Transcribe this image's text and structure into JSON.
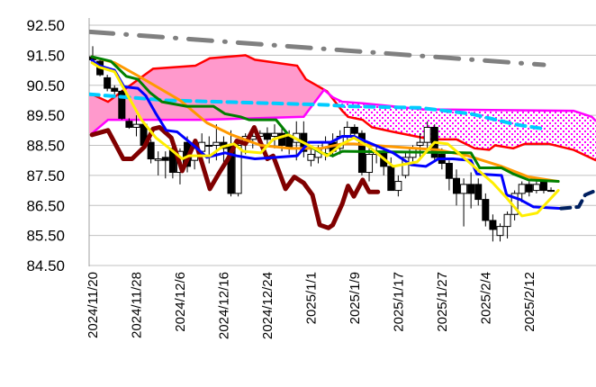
{
  "chart_data": {
    "type": "candlestick-ichimoku",
    "title": "",
    "xlabel": "",
    "ylabel": "",
    "ylim": [
      84.5,
      92.5
    ],
    "xlim": [
      -0.5,
      69.2
    ],
    "grid": true,
    "y_ticks": [
      "84.50",
      "85.50",
      "86.50",
      "87.50",
      "88.50",
      "89.50",
      "90.50",
      "91.50",
      "92.50"
    ],
    "x_tick_labels": [
      {
        "index": 0,
        "label": "2024/11/20"
      },
      {
        "index": 6,
        "label": "2024/11/28"
      },
      {
        "index": 12,
        "label": "2024/12/6"
      },
      {
        "index": 18,
        "label": "2024/12/16"
      },
      {
        "index": 24,
        "label": "2024/12/24"
      },
      {
        "index": 30,
        "label": "2025/1/1"
      },
      {
        "index": 36,
        "label": "2025/1/9"
      },
      {
        "index": 42,
        "label": "2025/1/17"
      },
      {
        "index": 48,
        "label": "2025/1/27"
      },
      {
        "index": 54,
        "label": "2025/2/4"
      },
      {
        "index": 60,
        "label": "2025/2/12"
      }
    ],
    "colors": {
      "kumo_bull": "#ff99cc",
      "kumo_bear_dots": "#ff00ff",
      "span_a": "#ff0000",
      "span_b": "#ff00ff"
    },
    "candles": [
      [
        91.45,
        91.8,
        91.3,
        91.35
      ],
      [
        91.3,
        91.35,
        90.8,
        90.85
      ],
      [
        90.75,
        90.85,
        90.3,
        90.4
      ],
      [
        90.4,
        90.5,
        90.2,
        90.3
      ],
      [
        90.3,
        90.35,
        89.35,
        89.4
      ],
      [
        89.3,
        89.4,
        89.05,
        89.1
      ],
      [
        89.1,
        89.5,
        88.8,
        89.2
      ],
      [
        89.2,
        89.3,
        88.4,
        88.5
      ],
      [
        88.6,
        88.7,
        87.9,
        88.05
      ],
      [
        88.0,
        88.3,
        87.5,
        88.05
      ],
      [
        88.1,
        88.3,
        87.4,
        88.0
      ],
      [
        88.4,
        88.6,
        87.4,
        87.6
      ],
      [
        87.6,
        88.4,
        87.2,
        88.3
      ],
      [
        88.6,
        88.8,
        87.6,
        87.8
      ],
      [
        88.0,
        88.6,
        87.7,
        88.4
      ],
      [
        88.3,
        88.9,
        87.8,
        88.6
      ],
      [
        88.5,
        88.8,
        87.9,
        88.5
      ],
      [
        88.5,
        89.2,
        88.0,
        88.6
      ],
      [
        88.6,
        88.8,
        87.8,
        88.4
      ],
      [
        88.5,
        89.0,
        86.8,
        86.9
      ],
      [
        86.9,
        88.6,
        86.8,
        88.5
      ],
      [
        88.6,
        88.9,
        88.2,
        88.8
      ],
      [
        88.7,
        88.9,
        88.4,
        88.8
      ],
      [
        88.8,
        89.0,
        88.5,
        88.9
      ],
      [
        88.9,
        89.1,
        88.5,
        88.7
      ],
      [
        88.8,
        89.2,
        88.4,
        88.9
      ],
      [
        88.9,
        89.1,
        88.3,
        88.5
      ],
      [
        88.8,
        89.0,
        88.2,
        88.4
      ],
      [
        88.6,
        89.3,
        88.0,
        88.9
      ],
      [
        88.9,
        89.3,
        88.1,
        88.3
      ],
      [
        88.0,
        88.4,
        87.8,
        88.2
      ],
      [
        88.1,
        88.5,
        87.9,
        88.4
      ],
      [
        88.4,
        88.8,
        88.0,
        88.6
      ],
      [
        88.6,
        88.9,
        88.1,
        88.3
      ],
      [
        88.4,
        89.0,
        88.2,
        88.8
      ],
      [
        88.8,
        89.3,
        88.6,
        89.1
      ],
      [
        89.1,
        89.2,
        88.7,
        88.9
      ],
      [
        88.9,
        89.0,
        87.5,
        87.6
      ],
      [
        87.6,
        88.4,
        87.3,
        88.2
      ],
      [
        88.2,
        88.5,
        87.9,
        88.3
      ],
      [
        88.3,
        88.5,
        87.5,
        87.8
      ],
      [
        87.8,
        88.1,
        87.0,
        87.0
      ],
      [
        87.0,
        87.5,
        86.8,
        87.3
      ],
      [
        87.5,
        88.3,
        87.4,
        88.1
      ],
      [
        88.1,
        88.5,
        87.9,
        88.4
      ],
      [
        88.5,
        88.9,
        88.0,
        88.6
      ],
      [
        88.6,
        89.3,
        88.4,
        89.1
      ],
      [
        89.1,
        89.2,
        88.0,
        88.1
      ],
      [
        88.2,
        88.4,
        87.7,
        87.9
      ],
      [
        87.9,
        88.0,
        87.0,
        87.4
      ],
      [
        87.4,
        87.7,
        86.5,
        86.9
      ],
      [
        86.9,
        87.4,
        85.8,
        87.2
      ],
      [
        87.2,
        87.6,
        86.4,
        86.9
      ],
      [
        87.2,
        87.4,
        86.5,
        86.7
      ],
      [
        86.7,
        86.9,
        85.8,
        86.0
      ],
      [
        86.0,
        86.2,
        85.3,
        85.7
      ],
      [
        85.5,
        85.9,
        85.3,
        85.8
      ],
      [
        85.8,
        86.3,
        85.4,
        86.2
      ],
      [
        86.2,
        87.0,
        86.0,
        86.9
      ],
      [
        86.9,
        87.3,
        86.6,
        87.2
      ],
      [
        87.2,
        87.3,
        86.8,
        86.95
      ],
      [
        87.0,
        87.3,
        86.9,
        87.2
      ],
      [
        87.3,
        87.4,
        86.9,
        87.0
      ],
      [
        87.0,
        87.1,
        86.95,
        87.0
      ]
    ],
    "span_a": [
      [
        -0.1,
        90.2
      ],
      [
        2.1,
        89.95
      ],
      [
        4.6,
        90.4
      ],
      [
        8.3,
        91.05
      ],
      [
        14.1,
        91.15
      ],
      [
        16.1,
        91.4
      ],
      [
        21.0,
        91.5
      ],
      [
        22.3,
        91.35
      ],
      [
        28.1,
        91.15
      ],
      [
        29.3,
        90.7
      ],
      [
        32.2,
        90.3
      ],
      [
        34.3,
        89.65
      ],
      [
        35.1,
        89.45
      ],
      [
        37.1,
        89.35
      ],
      [
        38.4,
        89.1
      ],
      [
        41.3,
        88.95
      ],
      [
        45.4,
        88.75
      ],
      [
        46.7,
        88.7
      ],
      [
        50.0,
        88.7
      ],
      [
        52.5,
        88.4
      ],
      [
        54.5,
        88.35
      ],
      [
        55.3,
        88.5
      ],
      [
        57.8,
        88.4
      ],
      [
        59.4,
        88.55
      ],
      [
        62.7,
        88.55
      ],
      [
        66.1,
        88.35
      ],
      [
        69.2,
        88.0
      ]
    ],
    "span_b": [
      [
        -0.1,
        88.9
      ],
      [
        2.1,
        89.35
      ],
      [
        14.9,
        89.35
      ],
      [
        29.0,
        89.45
      ],
      [
        31.8,
        90.35
      ],
      [
        33.0,
        90.1
      ],
      [
        34.3,
        89.95
      ],
      [
        37.1,
        89.9
      ],
      [
        45.4,
        89.7
      ],
      [
        66.1,
        89.65
      ],
      [
        68.6,
        89.45
      ],
      [
        69.2,
        89.3
      ]
    ],
    "series": [
      {
        "name": "long-term MA (gray dash-dot)",
        "color": "#808080",
        "style": "dashdot",
        "width": 5,
        "points": [
          [
            -0.4,
            92.28
          ],
          [
            62.0,
            91.18
          ]
        ]
      },
      {
        "name": "cyan dashed MA",
        "color": "#00ccff",
        "style": "dashed",
        "width": 4,
        "points": [
          [
            -0.4,
            90.2
          ],
          [
            10.0,
            90.0
          ],
          [
            32.0,
            89.85
          ],
          [
            35.0,
            89.8
          ],
          [
            45.0,
            89.75
          ],
          [
            52.0,
            89.55
          ],
          [
            58.0,
            89.2
          ],
          [
            62.0,
            89.05
          ]
        ]
      },
      {
        "name": "chikou span",
        "color": "#800000",
        "style": "solid",
        "width": 5,
        "points": [
          [
            -0.1,
            88.85
          ],
          [
            2.1,
            89.0
          ],
          [
            4.2,
            88.05
          ],
          [
            5.4,
            88.05
          ],
          [
            7.1,
            88.45
          ],
          [
            8.3,
            89.05
          ],
          [
            9.2,
            89.1
          ],
          [
            10.8,
            88.75
          ],
          [
            12.3,
            87.65
          ],
          [
            14.1,
            88.65
          ],
          [
            16.1,
            87.05
          ],
          [
            17.3,
            87.55
          ],
          [
            18.6,
            88.05
          ],
          [
            19.8,
            88.65
          ],
          [
            21.0,
            88.55
          ],
          [
            22.2,
            89.1
          ],
          [
            24.0,
            88.05
          ],
          [
            24.8,
            88.15
          ],
          [
            26.5,
            87.05
          ],
          [
            27.7,
            87.45
          ],
          [
            29.0,
            87.25
          ],
          [
            30.2,
            86.85
          ],
          [
            31.2,
            85.85
          ],
          [
            32.4,
            85.75
          ],
          [
            33.0,
            85.85
          ],
          [
            34.3,
            86.55
          ],
          [
            35.1,
            87.15
          ],
          [
            35.9,
            86.8
          ],
          [
            37.1,
            87.35
          ],
          [
            38.0,
            86.95
          ],
          [
            39.2,
            86.95
          ]
        ]
      },
      {
        "name": "orange MA",
        "color": "#ff9900",
        "style": "solid",
        "width": 3,
        "points": [
          [
            -0.1,
            91.45
          ],
          [
            3.0,
            91.25
          ],
          [
            6.7,
            90.75
          ],
          [
            12.0,
            90.0
          ],
          [
            15.7,
            89.25
          ],
          [
            19.1,
            88.85
          ],
          [
            23.1,
            88.5
          ],
          [
            27.2,
            88.4
          ],
          [
            31.4,
            88.4
          ],
          [
            34.3,
            88.55
          ],
          [
            35.9,
            88.55
          ],
          [
            41.3,
            88.45
          ],
          [
            47.5,
            88.35
          ],
          [
            51.6,
            88.15
          ],
          [
            56.2,
            87.8
          ],
          [
            59.9,
            87.45
          ],
          [
            64.0,
            87.3
          ]
        ]
      },
      {
        "name": "kijun-sen",
        "color": "#008000",
        "style": "solid",
        "width": 3,
        "points": [
          [
            -0.1,
            91.45
          ],
          [
            2.5,
            91.3
          ],
          [
            4.6,
            90.8
          ],
          [
            6.2,
            90.7
          ],
          [
            7.9,
            90.25
          ],
          [
            9.5,
            89.95
          ],
          [
            12.9,
            89.8
          ],
          [
            16.6,
            89.8
          ],
          [
            18.2,
            89.55
          ],
          [
            20.3,
            89.45
          ],
          [
            21.5,
            89.35
          ],
          [
            25.2,
            89.35
          ],
          [
            26.9,
            88.85
          ],
          [
            29.3,
            88.55
          ],
          [
            31.4,
            88.25
          ],
          [
            33.0,
            88.15
          ],
          [
            34.3,
            88.3
          ],
          [
            52.0,
            88.25
          ],
          [
            53.2,
            87.75
          ],
          [
            56.2,
            87.75
          ],
          [
            57.8,
            87.55
          ],
          [
            59.9,
            87.35
          ],
          [
            64.0,
            87.3
          ]
        ]
      },
      {
        "name": "tenkan-sen",
        "color": "#0000ff",
        "style": "solid",
        "width": 3,
        "points": [
          [
            -0.1,
            91.33
          ],
          [
            0.9,
            91.15
          ],
          [
            3.0,
            91.0
          ],
          [
            4.3,
            90.45
          ],
          [
            6.2,
            90.4
          ],
          [
            7.3,
            90.15
          ],
          [
            8.7,
            89.55
          ],
          [
            10.1,
            89.0
          ],
          [
            11.6,
            88.95
          ],
          [
            14.1,
            88.45
          ],
          [
            15.7,
            88.1
          ],
          [
            18.2,
            88.25
          ],
          [
            19.8,
            88.15
          ],
          [
            22.3,
            88.05
          ],
          [
            28.1,
            88.15
          ],
          [
            29.7,
            88.6
          ],
          [
            32.7,
            88.6
          ],
          [
            34.3,
            88.8
          ],
          [
            35.9,
            88.8
          ],
          [
            41.3,
            88.25
          ],
          [
            43.8,
            87.85
          ],
          [
            45.8,
            87.8
          ],
          [
            47.5,
            88.05
          ],
          [
            49.5,
            88.05
          ],
          [
            52.0,
            88.0
          ],
          [
            52.8,
            87.55
          ],
          [
            56.2,
            87.5
          ],
          [
            56.9,
            86.85
          ],
          [
            58.7,
            86.7
          ],
          [
            60.6,
            86.45
          ],
          [
            64.4,
            86.4
          ]
        ]
      },
      {
        "name": "yellow MA",
        "color": "#ffee00",
        "style": "solid",
        "width": 3,
        "points": [
          [
            -0.1,
            91.25
          ],
          [
            0.9,
            91.1
          ],
          [
            3.0,
            90.95
          ],
          [
            4.6,
            90.25
          ],
          [
            6.7,
            89.35
          ],
          [
            8.7,
            88.75
          ],
          [
            10.8,
            88.35
          ],
          [
            12.3,
            88.05
          ],
          [
            13.2,
            88.15
          ],
          [
            16.1,
            88.15
          ],
          [
            17.8,
            88.45
          ],
          [
            19.4,
            88.55
          ],
          [
            20.7,
            88.3
          ],
          [
            23.1,
            88.25
          ],
          [
            24.8,
            88.7
          ],
          [
            26.9,
            88.85
          ],
          [
            29.3,
            88.55
          ],
          [
            30.9,
            88.35
          ],
          [
            32.2,
            88.15
          ],
          [
            34.3,
            88.55
          ],
          [
            35.9,
            88.75
          ],
          [
            38.0,
            88.45
          ],
          [
            41.3,
            87.8
          ],
          [
            44.6,
            87.95
          ],
          [
            47.0,
            88.6
          ],
          [
            48.8,
            88.55
          ],
          [
            51.2,
            88.05
          ],
          [
            55.0,
            87.25
          ],
          [
            56.9,
            86.75
          ],
          [
            59.0,
            86.15
          ],
          [
            61.1,
            86.25
          ],
          [
            64.0,
            87.0
          ]
        ]
      },
      {
        "name": "projected tenkan (navy dashed)",
        "color": "#002060",
        "style": "dashed",
        "width": 4,
        "points": [
          [
            64.4,
            86.4
          ],
          [
            66.8,
            86.45
          ],
          [
            67.7,
            86.85
          ],
          [
            69.2,
            87.0
          ]
        ]
      }
    ]
  }
}
